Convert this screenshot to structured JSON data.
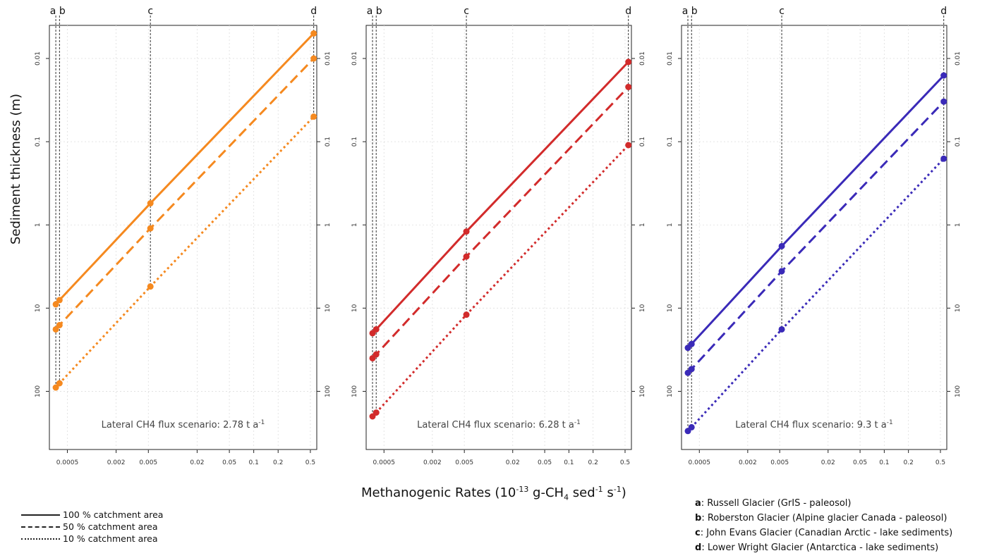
{
  "chart_data": [
    {
      "type": "line",
      "annotation": "Lateral CH4 flux scenario: 2.78 t a",
      "annotation_sup": "-1",
      "color": "#f5891f",
      "x_scale": "log",
      "y_scale": "log-reversed",
      "xlim": [
        0.0003,
        0.6
      ],
      "ylim": [
        500,
        0.004
      ],
      "x_ticks": [
        "0.0005",
        "0.002",
        "0.005",
        "0.02",
        "0.05",
        "0.1",
        "0.2",
        "0.5"
      ],
      "y_ticks": [
        "0.01",
        "0.1",
        "1",
        "10",
        "100"
      ],
      "site_x": [
        0.00036,
        0.0004,
        0.0053,
        0.55
      ],
      "series": [
        {
          "style": "solid",
          "x": [
            0.00036,
            0.0004,
            0.0053,
            0.55
          ],
          "y": [
            9.0,
            8.0,
            0.55,
            0.005
          ]
        },
        {
          "style": "dashed",
          "x": [
            0.00036,
            0.0004,
            0.0053,
            0.55
          ],
          "y": [
            18.0,
            16.0,
            1.1,
            0.01
          ]
        },
        {
          "style": "dotted",
          "x": [
            0.00036,
            0.0004,
            0.0053,
            0.55
          ],
          "y": [
            90.0,
            80.0,
            5.5,
            0.05
          ]
        }
      ]
    },
    {
      "type": "line",
      "annotation": "Lateral CH4 flux scenario: 6.28 t a",
      "annotation_sup": "-1",
      "color": "#d22b2b",
      "x_scale": "log",
      "y_scale": "log-reversed",
      "xlim": [
        0.0003,
        0.6
      ],
      "ylim": [
        500,
        0.004
      ],
      "x_ticks": [
        "0.0005",
        "0.002",
        "0.005",
        "0.02",
        "0.05",
        "0.1",
        "0.2",
        "0.5"
      ],
      "y_ticks": [
        "0.01",
        "0.1",
        "1",
        "10",
        "100"
      ],
      "site_x": [
        0.00036,
        0.0004,
        0.0053,
        0.55
      ],
      "series": [
        {
          "style": "solid",
          "x": [
            0.00036,
            0.0004,
            0.0053,
            0.55
          ],
          "y": [
            20.0,
            18.0,
            1.2,
            0.011
          ]
        },
        {
          "style": "dashed",
          "x": [
            0.00036,
            0.0004,
            0.0053,
            0.55
          ],
          "y": [
            40.0,
            36.0,
            2.4,
            0.022
          ]
        },
        {
          "style": "dotted",
          "x": [
            0.00036,
            0.0004,
            0.0053,
            0.55
          ],
          "y": [
            200.0,
            180.0,
            12.0,
            0.11
          ]
        }
      ]
    },
    {
      "type": "line",
      "annotation": "Lateral CH4 flux scenario: 9.3 t a",
      "annotation_sup": "-1",
      "color": "#3a2ab8",
      "x_scale": "log",
      "y_scale": "log-reversed",
      "xlim": [
        0.0003,
        0.6
      ],
      "ylim": [
        500,
        0.004
      ],
      "x_ticks": [
        "0.0005",
        "0.002",
        "0.005",
        "0.02",
        "0.05",
        "0.1",
        "0.2",
        "0.5"
      ],
      "y_ticks": [
        "0.01",
        "0.1",
        "1",
        "10",
        "100"
      ],
      "site_x": [
        0.00036,
        0.0004,
        0.0053,
        0.55
      ],
      "series": [
        {
          "style": "solid",
          "x": [
            0.00036,
            0.0004,
            0.0053,
            0.55
          ],
          "y": [
            30.0,
            27.0,
            1.8,
            0.016
          ]
        },
        {
          "style": "dashed",
          "x": [
            0.00036,
            0.0004,
            0.0053,
            0.55
          ],
          "y": [
            60.0,
            54.0,
            3.6,
            0.033
          ]
        },
        {
          "style": "dotted",
          "x": [
            0.00036,
            0.0004,
            0.0053,
            0.55
          ],
          "y": [
            300.0,
            270.0,
            18.0,
            0.16
          ]
        }
      ]
    }
  ],
  "site_letters": [
    "a",
    "b",
    "c",
    "d"
  ],
  "ylabel": "Sediment thickness (m)",
  "xlabel": {
    "prefix": "Methanogenic Rates (10",
    "exp1": "-13",
    "mid1": " g-CH",
    "sub": "4",
    "mid2": " sed",
    "exp2": "-1",
    "mid3": " s",
    "exp3": "-1",
    "suffix": ")"
  },
  "legend": [
    {
      "style": "solid",
      "label": "100 % catchment area"
    },
    {
      "style": "dashed",
      "label": "50 % catchment area"
    },
    {
      "style": "dotted",
      "label": "10 % catchment area"
    }
  ],
  "sites": [
    {
      "letter": "a",
      "text": ": Russell Glacier (GrIS - paleosol)"
    },
    {
      "letter": "b",
      "text": ": Roberston Glacier (Alpine glacier Canada -  paleosol)"
    },
    {
      "letter": "c",
      "text": ": John Evans Glacier (Canadian Arctic - lake sediments)"
    },
    {
      "letter": "d",
      "text": ": Lower Wright Glacier (Antarctica - lake sediments)"
    }
  ]
}
